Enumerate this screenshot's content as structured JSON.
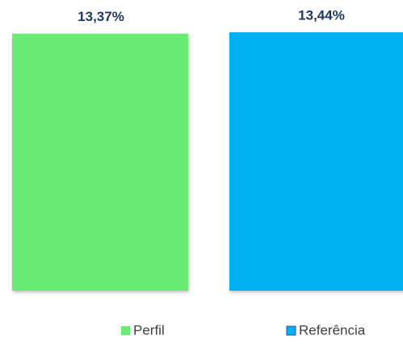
{
  "chart_data": {
    "type": "bar",
    "categories": [
      null
    ],
    "series": [
      {
        "name": "Perfil",
        "color": "#6aeb75",
        "values": [
          13.37
        ],
        "value_labels": [
          "13,37%"
        ]
      },
      {
        "name": "Referência",
        "color": "#00b0f0",
        "values": [
          13.44
        ],
        "value_labels": [
          "13,44%"
        ]
      }
    ],
    "grid": false,
    "legend": "bottom"
  }
}
